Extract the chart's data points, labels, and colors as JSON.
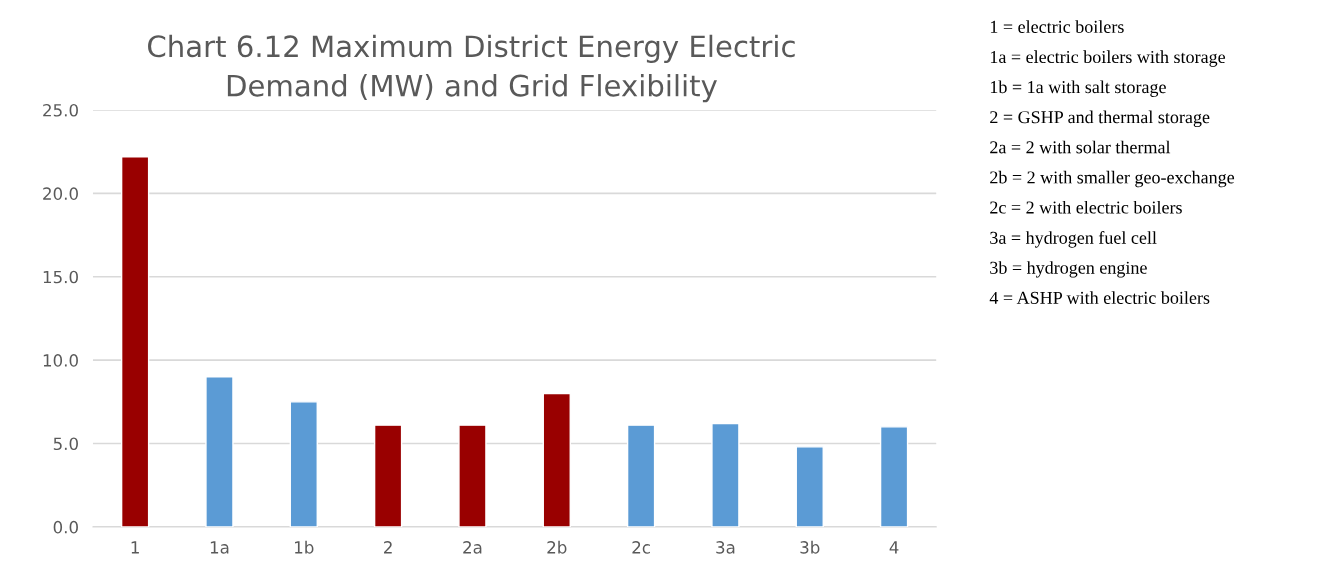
{
  "chart_data": {
    "type": "bar",
    "title": "Chart 6.12 Maximum District Energy Electric\nDemand (MW) and Grid Flexibility",
    "categories": [
      "1",
      "1a",
      "1b",
      "2",
      "2a",
      "2b",
      "2c",
      "3a",
      "3b",
      "4"
    ],
    "values": [
      22.2,
      9.0,
      7.5,
      6.1,
      6.1,
      8.0,
      6.1,
      6.2,
      4.8,
      6.0
    ],
    "colors": [
      "#990000",
      "#5b9bd5",
      "#5b9bd5",
      "#990000",
      "#990000",
      "#990000",
      "#5b9bd5",
      "#5b9bd5",
      "#5b9bd5",
      "#5b9bd5"
    ],
    "ylim": [
      0,
      25
    ],
    "yticks": [
      {
        "value": 0,
        "label": "0.0"
      },
      {
        "value": 5,
        "label": "5.0"
      },
      {
        "value": 10,
        "label": "10.0"
      },
      {
        "value": 15,
        "label": "15.0"
      },
      {
        "value": 20,
        "label": "20.0"
      },
      {
        "value": 25,
        "label": "25.0"
      }
    ],
    "grid": "y",
    "annotations": [
      "1 = electric boilers",
      "1a = electric boilers with storage",
      "1b = 1a with salt storage",
      "2 = GSHP and thermal storage",
      "2a = 2 with solar thermal",
      "2b = 2 with smaller geo-exchange",
      "2c = 2 with electric boilers",
      "3a = hydrogen fuel cell",
      "3b = hydrogen engine",
      "4 = ASHP with electric boilers"
    ]
  }
}
